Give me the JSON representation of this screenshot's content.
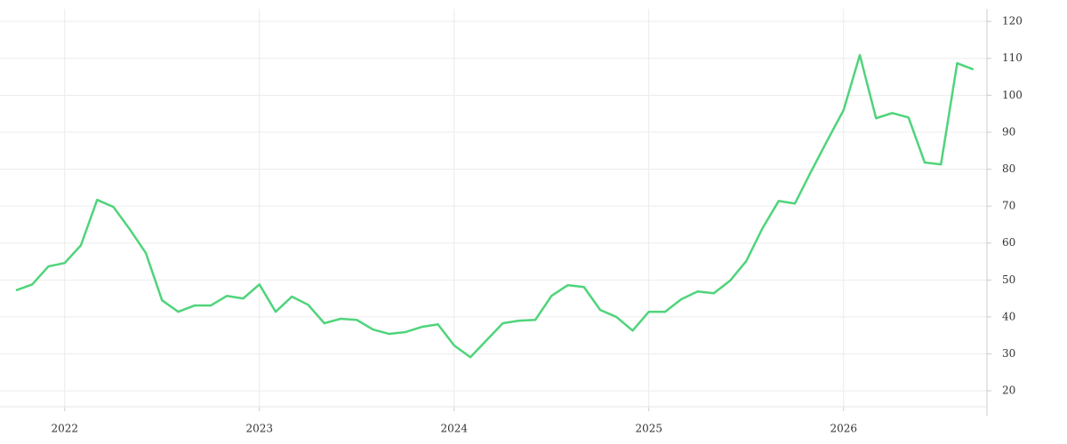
{
  "chart_data": {
    "type": "line",
    "categories": [
      null,
      null,
      null,
      "2022",
      null,
      null,
      null,
      null,
      null,
      null,
      null,
      null,
      null,
      null,
      null,
      "2023",
      null,
      null,
      null,
      null,
      null,
      null,
      null,
      null,
      null,
      null,
      null,
      "2024",
      null,
      null,
      null,
      null,
      null,
      null,
      null,
      null,
      null,
      null,
      null,
      "2025",
      null,
      null,
      null,
      null,
      null,
      null,
      null,
      null,
      null,
      null,
      null,
      "2026",
      null,
      null,
      null,
      null,
      null,
      null,
      null,
      null
    ],
    "series": [
      {
        "color": "#4fd47b",
        "values": [
          47.2,
          48.8,
          53.7,
          54.6,
          59.4,
          71.7,
          69.8,
          63.8,
          57.3,
          44.5,
          41.4,
          43.1,
          43.1,
          45.7,
          45.0,
          48.8,
          41.4,
          45.5,
          43.3,
          38.3,
          39.5,
          39.2,
          36.6,
          35.4,
          35.9,
          37.3,
          38.0,
          32.3,
          29.1,
          33.7,
          38.3,
          39.0,
          39.2,
          45.7,
          48.6,
          48.1,
          41.9,
          40.0,
          36.3,
          41.4,
          41.4,
          44.8,
          46.9,
          46.4,
          49.8,
          55.1,
          64.0,
          71.4,
          70.7,
          79.4,
          87.8,
          96.0,
          110.9,
          93.8,
          95.2,
          94.0,
          81.8,
          81.3,
          108.7,
          107.0
        ]
      }
    ],
    "ylim": [
      15.7,
      123.4
    ],
    "yticks": [
      20,
      30,
      40,
      50,
      60,
      70,
      80,
      90,
      100,
      110,
      120
    ],
    "grid": true
  }
}
